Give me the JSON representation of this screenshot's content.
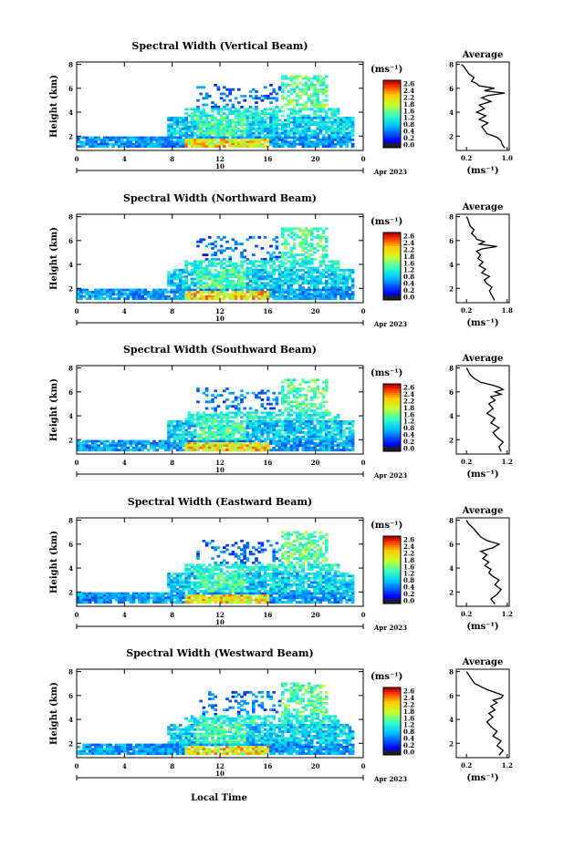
{
  "figure": {
    "time_axis_label": "Local Time"
  },
  "chart_data": [
    {
      "type": "heatmap",
      "title": "Spectral Width (Vertical Beam)",
      "ylabel": "Height (km)",
      "yticks": [
        "2",
        "4",
        "6",
        "8"
      ],
      "ylim": [
        0.8,
        8.2
      ],
      "xticks": [
        "0",
        "4",
        "8",
        "12",
        "16",
        "20",
        "0"
      ],
      "xlim": [
        0,
        24
      ],
      "date_day": "10",
      "date_month": "Apr 2023",
      "colorbar": {
        "unit": "(ms⁻¹)",
        "ticks": [
          "2.6",
          "2.4",
          "2.2",
          "1.8",
          "1.6",
          "1.2",
          "0.8",
          "0.4",
          "0.2",
          "0.0"
        ]
      },
      "profile": {
        "title": "Average",
        "xlabel": "(ms⁻¹)",
        "xticks": [
          "0.2",
          "1.0"
        ],
        "yticks": [
          "2",
          "4",
          "6",
          "8"
        ],
        "x": [
          0.95,
          0.9,
          0.88,
          0.8,
          0.6,
          0.55,
          0.5,
          0.62,
          0.45,
          0.58,
          0.4,
          0.55,
          0.45,
          0.68,
          0.5,
          0.62,
          0.95,
          0.55,
          0.75,
          0.45,
          0.4,
          0.3,
          0.35,
          0.25,
          0.2,
          0.15,
          0.1
        ],
        "y": [
          1.0,
          1.3,
          1.6,
          1.9,
          2.2,
          2.5,
          2.8,
          3.1,
          3.4,
          3.7,
          4.0,
          4.3,
          4.6,
          4.9,
          5.2,
          5.4,
          5.6,
          5.8,
          6.0,
          6.2,
          6.4,
          6.6,
          6.9,
          7.2,
          7.5,
          7.8,
          8.0
        ]
      }
    },
    {
      "type": "heatmap",
      "title": "Spectral Width (Northward Beam)",
      "ylabel": "Height (km)",
      "yticks": [
        "2",
        "4",
        "6",
        "8"
      ],
      "ylim": [
        0.8,
        8.2
      ],
      "xticks": [
        "0",
        "4",
        "8",
        "12",
        "16",
        "20",
        "0"
      ],
      "xlim": [
        0,
        24
      ],
      "date_day": "10",
      "date_month": "Apr 2023",
      "colorbar": {
        "unit": "(ms⁻¹)",
        "ticks": [
          "2.6",
          "2.4",
          "2.2",
          "1.8",
          "1.6",
          "1.2",
          "0.8",
          "0.4",
          "0.2",
          "0.0"
        ]
      },
      "profile": {
        "title": "Average",
        "xlabel": "(ms⁻¹)",
        "xticks": [
          "0.2",
          "1.8"
        ],
        "yticks": [
          "2",
          "4",
          "6",
          "8"
        ],
        "x": [
          1.3,
          1.2,
          1.1,
          1.2,
          1.0,
          0.9,
          1.1,
          0.8,
          0.95,
          0.7,
          0.85,
          0.65,
          0.75,
          0.6,
          0.8,
          1.4,
          0.7,
          0.9,
          0.6,
          0.55,
          0.4,
          0.5,
          0.35,
          0.3,
          0.25,
          0.2
        ],
        "y": [
          1.0,
          1.4,
          1.8,
          2.1,
          2.4,
          2.7,
          3.0,
          3.3,
          3.6,
          3.9,
          4.2,
          4.5,
          4.8,
          5.1,
          5.3,
          5.5,
          5.7,
          5.9,
          6.1,
          6.3,
          6.6,
          6.9,
          7.2,
          7.5,
          7.8,
          8.0
        ]
      }
    },
    {
      "type": "heatmap",
      "title": "Spectral Width (Southward Beam)",
      "ylabel": "Height (km)",
      "yticks": [
        "2",
        "4",
        "6",
        "8"
      ],
      "ylim": [
        0.8,
        8.2
      ],
      "xticks": [
        "0",
        "4",
        "8",
        "12",
        "16",
        "20",
        "0"
      ],
      "xlim": [
        0,
        24
      ],
      "date_day": "10",
      "date_month": "Apr 2023",
      "colorbar": {
        "unit": "(ms⁻¹)",
        "ticks": [
          "2.6",
          "2.4",
          "2.2",
          "1.8",
          "1.6",
          "1.2",
          "0.8",
          "0.4",
          "0.2",
          "0.0"
        ]
      },
      "profile": {
        "title": "Average",
        "xlabel": "(ms⁻¹)",
        "xticks": [
          "0.2",
          "1.2"
        ],
        "yticks": [
          "2",
          "4",
          "6",
          "8"
        ],
        "x": [
          1.05,
          1.0,
          1.1,
          0.95,
          0.85,
          1.0,
          0.8,
          0.9,
          0.7,
          0.85,
          0.75,
          0.9,
          0.8,
          1.05,
          0.9,
          1.1,
          1.0,
          0.8,
          0.55,
          0.4,
          0.3,
          0.25,
          0.2
        ],
        "y": [
          1.0,
          1.4,
          1.8,
          2.2,
          2.6,
          3.0,
          3.4,
          3.8,
          4.2,
          4.6,
          5.0,
          5.3,
          5.6,
          5.8,
          6.0,
          6.2,
          6.4,
          6.6,
          6.8,
          7.1,
          7.4,
          7.7,
          8.0
        ]
      }
    },
    {
      "type": "heatmap",
      "title": "Spectral Width (Eastward Beam)",
      "ylabel": "Height (km)",
      "yticks": [
        "2",
        "4",
        "6",
        "8"
      ],
      "ylim": [
        0.8,
        8.2
      ],
      "xticks": [
        "0",
        "4",
        "8",
        "12",
        "16",
        "20",
        "0"
      ],
      "xlim": [
        0,
        24
      ],
      "date_day": "10",
      "date_month": "Apr 2023",
      "colorbar": {
        "unit": "(ms⁻¹)",
        "ticks": [
          "2.6",
          "2.4",
          "2.2",
          "1.8",
          "1.6",
          "1.2",
          "0.8",
          "0.4",
          "0.2",
          "0.0"
        ]
      },
      "profile": {
        "title": "Average",
        "xlabel": "(ms⁻¹)",
        "xticks": [
          "0.2",
          "1.2"
        ],
        "yticks": [
          "2",
          "4",
          "6",
          "8"
        ],
        "x": [
          0.9,
          0.8,
          0.95,
          1.05,
          0.9,
          1.0,
          0.85,
          0.75,
          0.8,
          0.65,
          0.75,
          0.6,
          0.7,
          0.55,
          0.85,
          1.0,
          0.7,
          0.55,
          0.45,
          0.35,
          0.25,
          0.2
        ],
        "y": [
          1.0,
          1.4,
          1.8,
          2.2,
          2.6,
          3.0,
          3.3,
          3.6,
          3.9,
          4.2,
          4.5,
          4.8,
          5.1,
          5.4,
          5.7,
          6.0,
          6.3,
          6.6,
          7.0,
          7.4,
          7.7,
          8.0
        ]
      }
    },
    {
      "type": "heatmap",
      "title": "Spectral Width (Westward Beam)",
      "ylabel": "Height (km)",
      "yticks": [
        "2",
        "4",
        "6",
        "8"
      ],
      "ylim": [
        0.8,
        8.2
      ],
      "xticks": [
        "0",
        "4",
        "8",
        "12",
        "16",
        "20",
        "0"
      ],
      "xlim": [
        0,
        24
      ],
      "date_day": "10",
      "date_month": "Apr 2023",
      "colorbar": {
        "unit": "(ms⁻¹)",
        "ticks": [
          "2.6",
          "2.4",
          "2.2",
          "1.8",
          "1.6",
          "1.2",
          "0.8",
          "0.4",
          "0.2",
          "0.0"
        ]
      },
      "profile": {
        "title": "Average",
        "xlabel": "(ms⁻¹)",
        "xticks": [
          "0.2",
          "1.2"
        ],
        "yticks": [
          "2",
          "4",
          "6",
          "8"
        ],
        "x": [
          1.0,
          1.1,
          0.95,
          1.05,
          0.85,
          0.95,
          0.8,
          0.7,
          0.85,
          0.75,
          0.9,
          0.8,
          0.95,
          0.85,
          1.05,
          1.1,
          0.95,
          0.7,
          0.4,
          0.3,
          0.2
        ],
        "y": [
          1.0,
          1.4,
          1.8,
          2.2,
          2.6,
          3.0,
          3.4,
          3.8,
          4.2,
          4.5,
          4.8,
          5.1,
          5.4,
          5.6,
          5.8,
          6.0,
          6.2,
          6.5,
          7.0,
          7.5,
          8.0
        ]
      }
    }
  ]
}
